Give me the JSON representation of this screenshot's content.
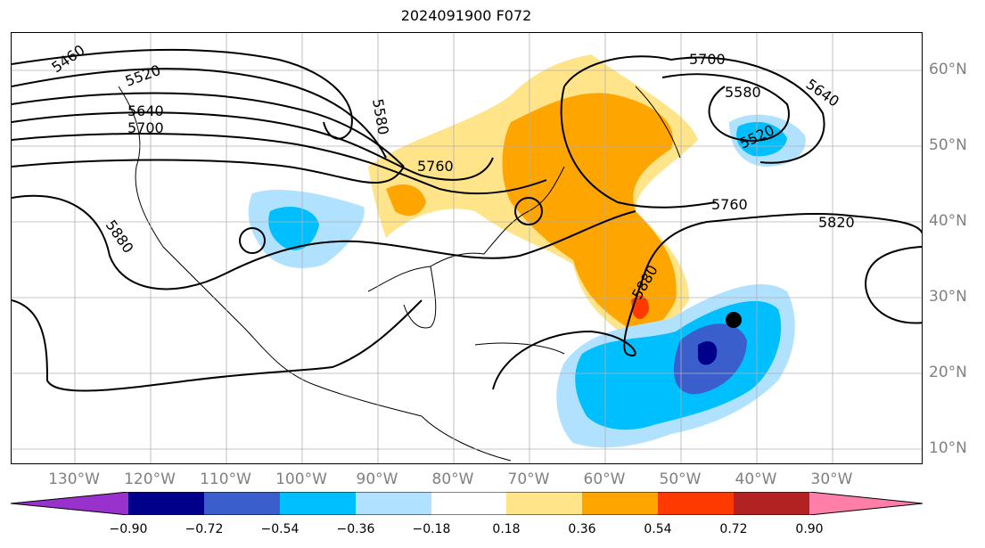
{
  "title": "2024091900 F072",
  "lon_labels": [
    "130°W",
    "120°W",
    "110°W",
    "100°W",
    "90°W",
    "80°W",
    "70°W",
    "60°W",
    "50°W",
    "40°W",
    "30°W"
  ],
  "lat_labels": [
    "60°N",
    "50°N",
    "40°N",
    "30°N",
    "20°N",
    "10°N"
  ],
  "contour_labels": [
    "5460",
    "5520",
    "5580",
    "5640",
    "5700",
    "5760",
    "5700",
    "5580",
    "5640",
    "5520",
    "5760",
    "5820",
    "5880",
    "5880"
  ],
  "colorbar": {
    "ticks": [
      "−0.90",
      "−0.72",
      "−0.54",
      "−0.36",
      "−0.18",
      "0.18",
      "0.36",
      "0.54",
      "0.72",
      "0.90"
    ],
    "colors": [
      "#9932cc",
      "#00008b",
      "#3a5fcd",
      "#00bfff",
      "#b0e2ff",
      "#ffffff",
      "#ffe48a",
      "#ffa500",
      "#ff3a00",
      "#b22222",
      "#ff7fa8"
    ]
  },
  "marker": "storm-center-dot"
}
